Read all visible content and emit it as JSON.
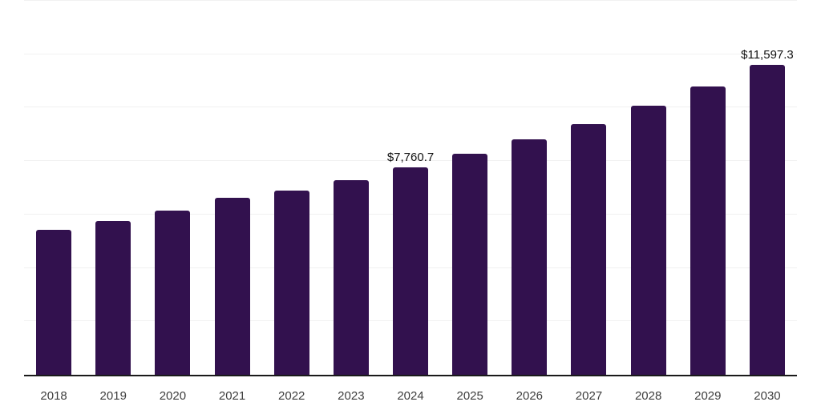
{
  "chart_data": {
    "type": "bar",
    "title": "",
    "xlabel": "",
    "ylabel": "",
    "categories": [
      "2018",
      "2019",
      "2020",
      "2021",
      "2022",
      "2023",
      "2024",
      "2025",
      "2026",
      "2027",
      "2028",
      "2029",
      "2030"
    ],
    "values": [
      5430,
      5765,
      6150,
      6620,
      6900,
      7300,
      7760.7,
      8260,
      8810,
      9390,
      10060,
      10780,
      11597.3
    ],
    "value_labels": [
      "",
      "",
      "",
      "",
      "",
      "",
      "$7,760.7",
      "",
      "",
      "",
      "",
      "",
      "$11,597.3"
    ],
    "ylim": [
      0,
      14000
    ],
    "grid": {
      "visible": true,
      "step": 2000,
      "color": "#f1f1f1"
    },
    "legend": "none",
    "colors": {
      "bar": "#32114E",
      "axis_line": "#1a1a1a",
      "tick_label": "#3d3d3d",
      "value_label": "#111111",
      "background": "#ffffff"
    }
  }
}
